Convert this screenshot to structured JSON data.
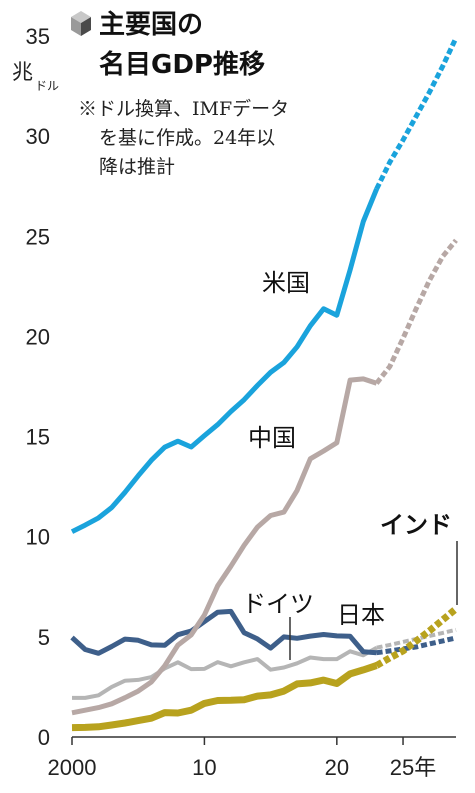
{
  "chart_data": {
    "type": "line",
    "title_line1": "主要国の",
    "title_line2": "名目GDP推移",
    "note_lines": [
      "※ドル換算、IMFデータ",
      "を基に作成。24年以",
      "降は推計"
    ],
    "y_unit_main": "兆",
    "y_unit_sub": "ドル",
    "ylim": [
      0,
      35
    ],
    "yticks": [
      "0",
      "5",
      "10",
      "15",
      "20",
      "25",
      "30",
      "35"
    ],
    "xlim": [
      2000,
      2029
    ],
    "xtick_labels": [
      "2000",
      "10",
      "20",
      "25年"
    ],
    "projection_start": 2023,
    "series": [
      {
        "name": "米国",
        "color": "#1aa3dc",
        "x": [
          2000,
          2001,
          2002,
          2003,
          2004,
          2005,
          2006,
          2007,
          2008,
          2009,
          2010,
          2011,
          2012,
          2013,
          2014,
          2015,
          2016,
          2017,
          2018,
          2019,
          2020,
          2021,
          2022,
          2023,
          2024,
          2025,
          2026,
          2027,
          2028,
          2029
        ],
        "values": [
          10.25,
          10.58,
          10.94,
          11.46,
          12.22,
          13.04,
          13.82,
          14.47,
          14.77,
          14.48,
          15.05,
          15.6,
          16.25,
          16.84,
          17.55,
          18.21,
          18.7,
          19.48,
          20.53,
          21.38,
          21.06,
          23.32,
          25.74,
          27.36,
          28.7,
          29.8,
          31.0,
          32.2,
          33.5,
          34.9
        ]
      },
      {
        "name": "中国",
        "color": "#b7a8a5",
        "x": [
          2000,
          2001,
          2002,
          2003,
          2004,
          2005,
          2006,
          2007,
          2008,
          2009,
          2010,
          2011,
          2012,
          2013,
          2014,
          2015,
          2016,
          2017,
          2018,
          2019,
          2020,
          2021,
          2022,
          2023,
          2024,
          2025,
          2026,
          2027,
          2028,
          2029
        ],
        "values": [
          1.21,
          1.34,
          1.47,
          1.66,
          1.96,
          2.29,
          2.75,
          3.55,
          4.59,
          5.1,
          6.09,
          7.55,
          8.53,
          9.57,
          10.48,
          11.06,
          11.23,
          12.31,
          13.89,
          14.28,
          14.69,
          17.82,
          17.88,
          17.66,
          18.5,
          19.9,
          21.4,
          22.8,
          24.0,
          24.8
        ]
      },
      {
        "name": "ドイツ",
        "color": "#b5b5b5",
        "x": [
          2000,
          2001,
          2002,
          2003,
          2004,
          2005,
          2006,
          2007,
          2008,
          2009,
          2010,
          2011,
          2012,
          2013,
          2014,
          2015,
          2016,
          2017,
          2018,
          2019,
          2020,
          2021,
          2022,
          2023,
          2024,
          2025,
          2026,
          2027,
          2028,
          2029
        ],
        "values": [
          1.95,
          1.95,
          2.08,
          2.5,
          2.81,
          2.85,
          2.99,
          3.42,
          3.73,
          3.39,
          3.4,
          3.74,
          3.53,
          3.73,
          3.89,
          3.36,
          3.47,
          3.68,
          3.97,
          3.89,
          3.89,
          4.28,
          4.08,
          4.46,
          4.6,
          4.75,
          4.9,
          5.05,
          5.2,
          5.35
        ]
      },
      {
        "name": "日本",
        "color": "#3e5f8a",
        "x": [
          2000,
          2001,
          2002,
          2003,
          2004,
          2005,
          2006,
          2007,
          2008,
          2009,
          2010,
          2011,
          2012,
          2013,
          2014,
          2015,
          2016,
          2017,
          2018,
          2019,
          2020,
          2021,
          2022,
          2023,
          2024,
          2025,
          2026,
          2027,
          2028,
          2029
        ],
        "values": [
          4.97,
          4.37,
          4.18,
          4.52,
          4.89,
          4.83,
          4.6,
          4.58,
          5.11,
          5.29,
          5.76,
          6.23,
          6.27,
          5.21,
          4.9,
          4.44,
          5.0,
          4.93,
          5.04,
          5.12,
          5.05,
          5.03,
          4.26,
          4.21,
          4.3,
          4.4,
          4.5,
          4.65,
          4.8,
          4.95
        ]
      },
      {
        "name": "インド",
        "color": "#b8a21e",
        "x": [
          2000,
          2001,
          2002,
          2003,
          2004,
          2005,
          2006,
          2007,
          2008,
          2009,
          2010,
          2011,
          2012,
          2013,
          2014,
          2015,
          2016,
          2017,
          2018,
          2019,
          2020,
          2021,
          2022,
          2023,
          2024,
          2025,
          2026,
          2027,
          2028,
          2029
        ],
        "values": [
          0.47,
          0.48,
          0.51,
          0.6,
          0.7,
          0.82,
          0.94,
          1.22,
          1.2,
          1.34,
          1.68,
          1.82,
          1.83,
          1.86,
          2.04,
          2.1,
          2.29,
          2.65,
          2.7,
          2.84,
          2.67,
          3.15,
          3.35,
          3.57,
          3.95,
          4.3,
          4.8,
          5.3,
          5.85,
          6.4
        ]
      }
    ]
  }
}
